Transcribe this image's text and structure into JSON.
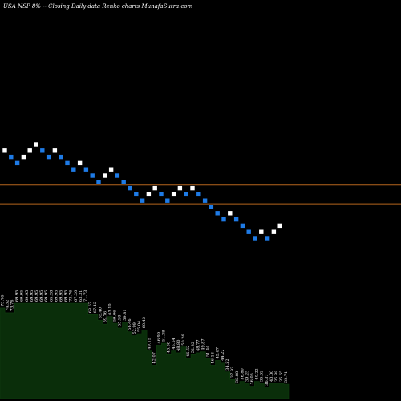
{
  "header": {
    "title": "USA NSP 8% -- Closing Daily data Renko charts MunafaSutra.com"
  },
  "colors": {
    "background": "#000000",
    "up_brick": "#ffffff",
    "down_brick": "#1e7be6",
    "reference_line": "#b5651d",
    "volume_fill": "#0a2e0a"
  },
  "chart_data": {
    "type": "renko",
    "bricks": [
      {
        "level": 14,
        "dir": "up"
      },
      {
        "level": 13,
        "dir": "down"
      },
      {
        "level": 12,
        "dir": "down"
      },
      {
        "level": 13,
        "dir": "up"
      },
      {
        "level": 14,
        "dir": "up"
      },
      {
        "level": 15,
        "dir": "up"
      },
      {
        "level": 14,
        "dir": "down"
      },
      {
        "level": 13,
        "dir": "down"
      },
      {
        "level": 14,
        "dir": "up"
      },
      {
        "level": 13,
        "dir": "down"
      },
      {
        "level": 12,
        "dir": "down"
      },
      {
        "level": 11,
        "dir": "down"
      },
      {
        "level": 12,
        "dir": "up"
      },
      {
        "level": 11,
        "dir": "down"
      },
      {
        "level": 10,
        "dir": "down"
      },
      {
        "level": 9,
        "dir": "down"
      },
      {
        "level": 10,
        "dir": "up"
      },
      {
        "level": 11,
        "dir": "up"
      },
      {
        "level": 10,
        "dir": "down"
      },
      {
        "level": 9,
        "dir": "down"
      },
      {
        "level": 8,
        "dir": "down"
      },
      {
        "level": 7,
        "dir": "down"
      },
      {
        "level": 6,
        "dir": "down"
      },
      {
        "level": 7,
        "dir": "up"
      },
      {
        "level": 8,
        "dir": "up"
      },
      {
        "level": 7,
        "dir": "down"
      },
      {
        "level": 6,
        "dir": "down"
      },
      {
        "level": 7,
        "dir": "up"
      },
      {
        "level": 8,
        "dir": "up"
      },
      {
        "level": 7,
        "dir": "down"
      },
      {
        "level": 8,
        "dir": "up"
      },
      {
        "level": 7,
        "dir": "down"
      },
      {
        "level": 6,
        "dir": "down"
      },
      {
        "level": 5,
        "dir": "down"
      },
      {
        "level": 4,
        "dir": "down"
      },
      {
        "level": 3,
        "dir": "down"
      },
      {
        "level": 4,
        "dir": "up"
      },
      {
        "level": 3,
        "dir": "down"
      },
      {
        "level": 2,
        "dir": "down"
      },
      {
        "level": 1,
        "dir": "down"
      },
      {
        "level": 0,
        "dir": "down"
      },
      {
        "level": 1,
        "dir": "up"
      },
      {
        "level": 0,
        "dir": "down"
      },
      {
        "level": 1,
        "dir": "up"
      },
      {
        "level": 2,
        "dir": "up"
      }
    ],
    "reference_lines": [
      8.5,
      5.5
    ],
    "volume_labels": [
      "73.76",
      "74.32",
      "73.76",
      "69.95",
      "69.95",
      "69.95",
      "69.95",
      "69.95",
      "69.95",
      "69.95",
      "65.28",
      "69.95",
      "69.95",
      "69.95",
      "73.76",
      "67.20",
      "63.31",
      "71.73",
      "68.67",
      "67.42",
      "65.40",
      "59.76",
      "63.10",
      "59.06",
      "55.90",
      "59.81",
      "56.46",
      "52.99",
      "55.04",
      "60.42",
      "49.15",
      "42.07",
      "46.99",
      "51.38",
      "48.08",
      "45.54",
      "48.80",
      "50.26",
      "46.52",
      "52.82",
      "48.77",
      "49.87",
      "51.44",
      "46.13",
      "42.67",
      "44.22",
      "34.52",
      "37.93",
      "35.88",
      "36.80",
      "39.25",
      "36.05",
      "40.22",
      "36.62",
      "36.37",
      "40.00",
      "35.88",
      "35.65",
      "32.71"
    ],
    "volume_values": [
      0.95,
      0.9,
      0.9,
      1.0,
      1.0,
      1.0,
      1.0,
      1.0,
      1.0,
      1.0,
      1.0,
      1.0,
      1.0,
      1.0,
      1.0,
      1.0,
      1.0,
      1.0,
      0.88,
      0.88,
      0.82,
      0.78,
      0.86,
      0.79,
      0.74,
      0.8,
      0.7,
      0.66,
      0.68,
      0.72,
      0.5,
      0.35,
      0.56,
      0.58,
      0.46,
      0.5,
      0.48,
      0.54,
      0.42,
      0.46,
      0.48,
      0.49,
      0.42,
      0.35,
      0.4,
      0.38,
      0.28,
      0.2,
      0.15,
      0.18,
      0.16,
      0.13,
      0.18,
      0.16,
      0.12,
      0.16,
      0.16,
      0.16,
      0.15
    ]
  }
}
